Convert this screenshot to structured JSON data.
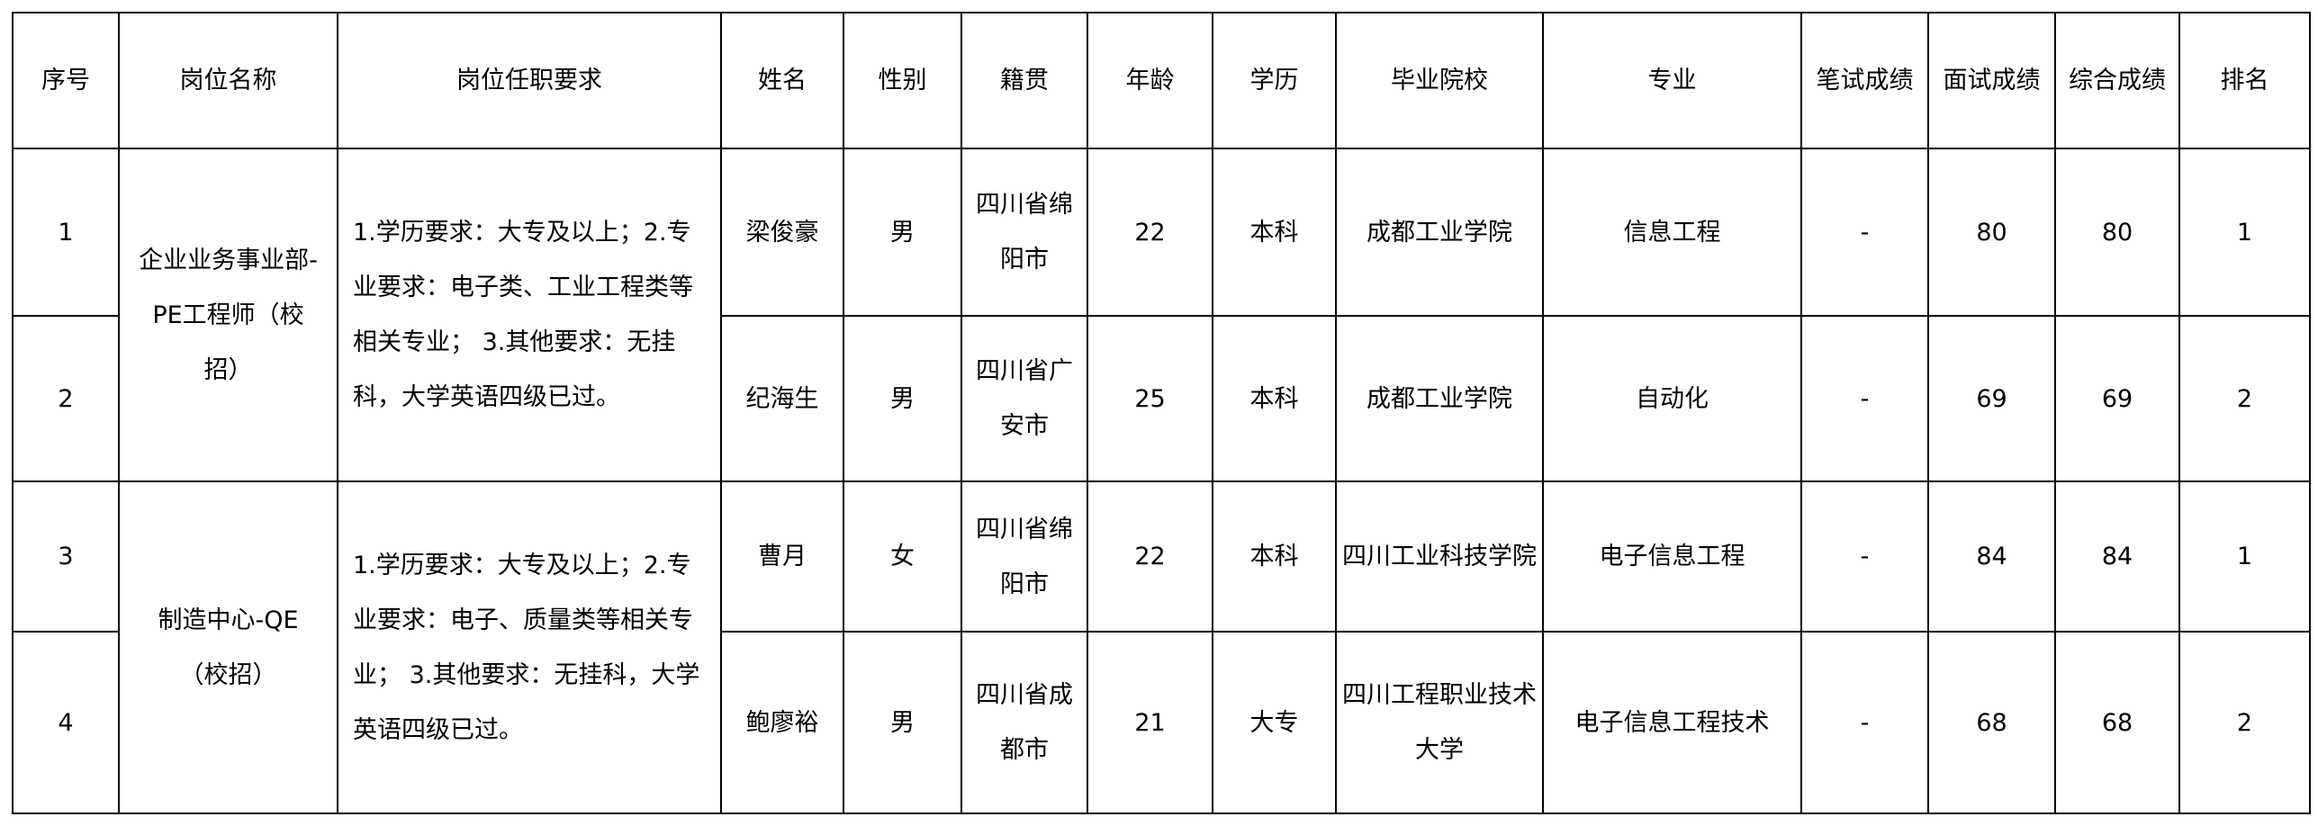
{
  "headers": [
    "序号",
    "岗位名称",
    "岗位任职要求",
    "姓名",
    "性别",
    "籍贯",
    "年龄",
    "学历",
    "毕业院校",
    "专业",
    "笔试成绩",
    "面试成绩",
    "综合成绩",
    "排名"
  ],
  "groups": [
    {
      "job": "企业业务事业部-PE工程师（校招）",
      "requirements": "1.学历要求：大专及以上；2.专业要求：电子类、工业工程类等相关专业； 3.其他要求：无挂科，大学英语四级已过。"
    },
    {
      "job": "制造中心-QE（校招）",
      "requirements": "1.学历要求：大专及以上；2.专业要求：电子、质量类等相关专业； 3.其他要求：无挂科，大学英语四级已过。"
    }
  ],
  "rows": [
    {
      "no": "1",
      "name": "梁俊豪",
      "gender": "男",
      "origin": "四川省绵阳市",
      "age": "22",
      "edu": "本科",
      "school": "成都工业学院",
      "major": "信息工程",
      "written": "-",
      "interview": "80",
      "total": "80",
      "rank": "1"
    },
    {
      "no": "2",
      "name": "纪海生",
      "gender": "男",
      "origin": "四川省广安市",
      "age": "25",
      "edu": "本科",
      "school": "成都工业学院",
      "major": "自动化",
      "written": "-",
      "interview": "69",
      "total": "69",
      "rank": "2"
    },
    {
      "no": "3",
      "name": "曹月",
      "gender": "女",
      "origin": "四川省绵阳市",
      "age": "22",
      "edu": "本科",
      "school": "四川工业科技学院",
      "major": "电子信息工程",
      "written": "-",
      "interview": "84",
      "total": "84",
      "rank": "1"
    },
    {
      "no": "4",
      "name": "鲍廖裕",
      "gender": "男",
      "origin": "四川省成都市",
      "age": "21",
      "edu": "大专",
      "school": "四川工程职业技术大学",
      "major": "电子信息工程技术",
      "written": "-",
      "interview": "68",
      "total": "68",
      "rank": "2"
    }
  ]
}
